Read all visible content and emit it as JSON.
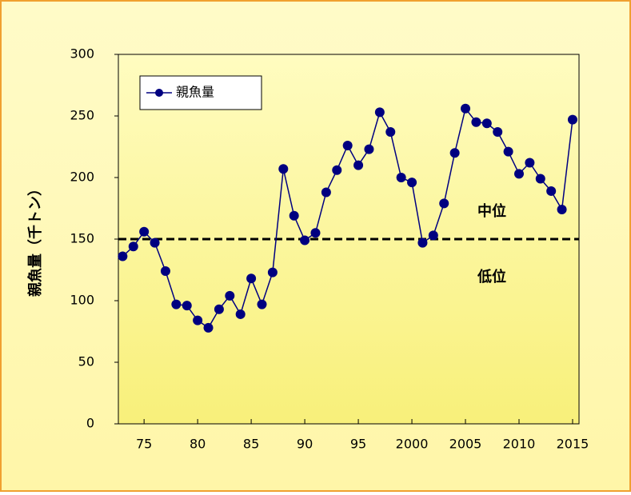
{
  "chart_data": {
    "type": "line",
    "ylabel": "親魚量（千トン）",
    "x": [
      1973,
      1974,
      1975,
      1976,
      1977,
      1978,
      1979,
      1980,
      1981,
      1982,
      1983,
      1984,
      1985,
      1986,
      1987,
      1988,
      1989,
      1990,
      1991,
      1992,
      1993,
      1994,
      1995,
      1996,
      1997,
      1998,
      1999,
      2000,
      2001,
      2002,
      2003,
      2004,
      2005,
      2006,
      2007,
      2008,
      2009,
      2010,
      2011,
      2012,
      2013,
      2014,
      2015
    ],
    "series": [
      {
        "name": "親魚量",
        "color": "#000080",
        "values": [
          136,
          144,
          156,
          147,
          124,
          97,
          96,
          84,
          78,
          93,
          104,
          89,
          118,
          97,
          123,
          207,
          169,
          149,
          155,
          188,
          206,
          226,
          210,
          223,
          253,
          237,
          200,
          196,
          147,
          153,
          179,
          220,
          256,
          245,
          244,
          237,
          221,
          203,
          212,
          199,
          189,
          174,
          247
        ]
      }
    ],
    "xlim": [
      1972.6,
      2015.6
    ],
    "xticks": [
      {
        "value": 1975,
        "label": "75"
      },
      {
        "value": 1980,
        "label": "80"
      },
      {
        "value": 1985,
        "label": "85"
      },
      {
        "value": 1990,
        "label": "90"
      },
      {
        "value": 1995,
        "label": "95"
      },
      2000,
      2005,
      2010,
      2015
    ],
    "ylim": [
      0,
      300
    ],
    "yticks": [
      0,
      50,
      100,
      150,
      200,
      250,
      300
    ],
    "threshold": 150,
    "annotations": [
      "中位",
      "低位"
    ],
    "legend": "upper left"
  }
}
